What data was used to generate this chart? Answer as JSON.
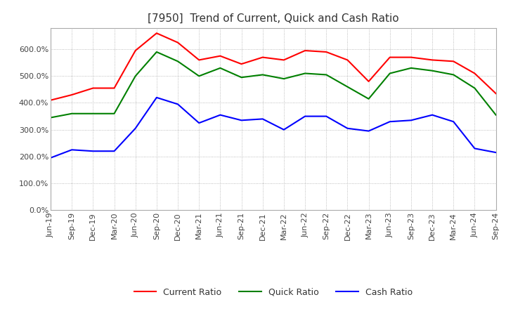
{
  "title": "[7950]  Trend of Current, Quick and Cash Ratio",
  "x_labels": [
    "Jun-19",
    "Sep-19",
    "Dec-19",
    "Mar-20",
    "Jun-20",
    "Sep-20",
    "Dec-20",
    "Mar-21",
    "Jun-21",
    "Sep-21",
    "Dec-21",
    "Mar-22",
    "Jun-22",
    "Sep-22",
    "Dec-22",
    "Mar-23",
    "Jun-23",
    "Sep-23",
    "Dec-23",
    "Mar-24",
    "Jun-24",
    "Sep-24"
  ],
  "current_ratio": [
    410,
    430,
    455,
    455,
    595,
    660,
    625,
    560,
    575,
    545,
    570,
    560,
    595,
    590,
    560,
    480,
    570,
    570,
    560,
    555,
    510,
    435
  ],
  "quick_ratio": [
    345,
    360,
    360,
    360,
    500,
    590,
    555,
    500,
    530,
    495,
    505,
    490,
    510,
    505,
    460,
    415,
    510,
    530,
    520,
    505,
    455,
    355
  ],
  "cash_ratio": [
    195,
    225,
    220,
    220,
    305,
    420,
    395,
    325,
    355,
    335,
    340,
    300,
    350,
    350,
    305,
    295,
    330,
    335,
    355,
    330,
    230,
    215
  ],
  "current_color": "#ff0000",
  "quick_color": "#008000",
  "cash_color": "#0000ff",
  "ylim": [
    0,
    680
  ],
  "yticks": [
    0,
    100,
    200,
    300,
    400,
    500,
    600
  ],
  "background_color": "#ffffff",
  "plot_bg_color": "#ffffff",
  "grid_color": "#aaaaaa",
  "title_fontsize": 11,
  "legend_fontsize": 9,
  "tick_fontsize": 8
}
